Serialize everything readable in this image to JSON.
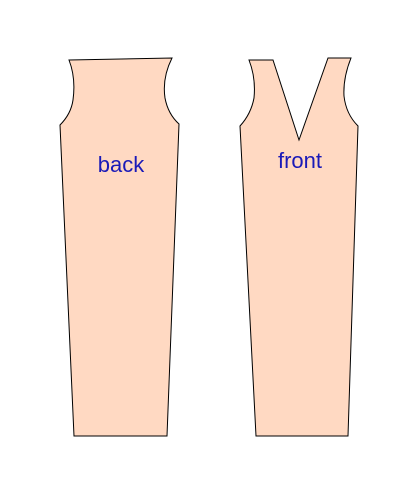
{
  "pieces": {
    "back": {
      "label": "back"
    },
    "front": {
      "label": "front"
    }
  },
  "colors": {
    "fill": "#FFD9C2",
    "outline": "#000000",
    "label": "#1A1AB8"
  }
}
